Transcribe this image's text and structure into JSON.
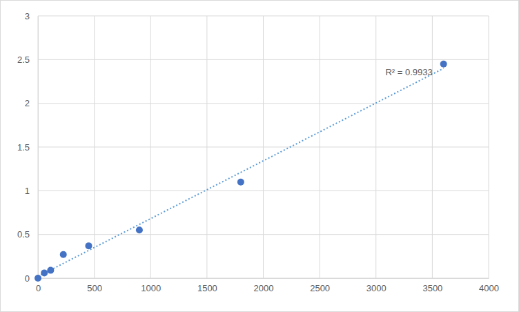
{
  "chart_data": {
    "type": "scatter",
    "x": [
      0,
      56.25,
      112.5,
      225,
      450,
      900,
      1800,
      3600
    ],
    "values": [
      0,
      0.06,
      0.09,
      0.27,
      0.37,
      0.55,
      1.1,
      2.45
    ],
    "color": "#4472c4",
    "marker": "circle",
    "trendline": {
      "x": [
        0,
        3600
      ],
      "values": [
        0.02,
        2.4
      ],
      "color": "#5b9bd5",
      "line_style": "dotted"
    },
    "annotations": [
      "R² = 0.9933"
    ],
    "xlim": [
      0,
      4000
    ],
    "xticks": [
      0,
      500,
      1000,
      1500,
      2000,
      2500,
      3000,
      3500,
      4000
    ],
    "ylim": [
      0,
      3
    ],
    "yticks": [
      0,
      0.5,
      1,
      1.5,
      2,
      2.5,
      3
    ],
    "grid": true
  }
}
